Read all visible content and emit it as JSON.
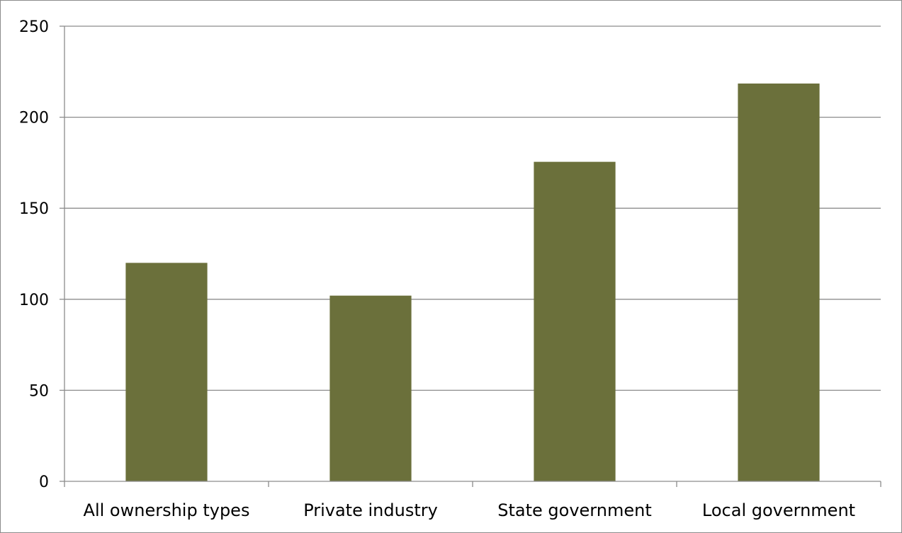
{
  "chart_data": {
    "type": "bar",
    "title": "",
    "xlabel": "",
    "ylabel": "",
    "categories": [
      "All ownership types",
      "Private industry",
      "State government",
      "Local government"
    ],
    "values": [
      120,
      102,
      175.5,
      218.5
    ],
    "ylim": [
      0,
      250
    ],
    "yticks": [
      0,
      50,
      100,
      150,
      200,
      250
    ],
    "ytick_labels": [
      "0",
      "50",
      "100",
      "150",
      "200",
      "250"
    ],
    "grid": true,
    "legend": "none",
    "colors": {
      "bar": "#6b703b",
      "gridline": "#8c8c8c",
      "text": "#000000"
    }
  }
}
